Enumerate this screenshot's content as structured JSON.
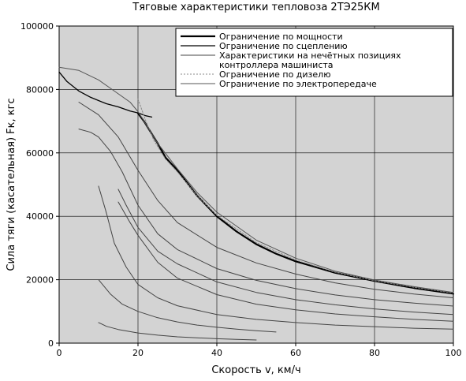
{
  "chart_data": {
    "type": "line",
    "title": "Тяговые характеристики тепловоза 2ТЭ25КМ",
    "xlabel": "Скорость v, км/ч",
    "ylabel": "Сила тяги (касательная) Fк, кгс",
    "xlim": [
      0,
      100
    ],
    "ylim": [
      0,
      100000
    ],
    "xticks": [
      0,
      20,
      40,
      60,
      80,
      100
    ],
    "yticks": [
      0,
      20000,
      40000,
      60000,
      80000,
      100000
    ],
    "grid": true,
    "background": "#d3d3d3",
    "legend_position": "top-right",
    "legend": [
      {
        "label": "Ограничение по мощности",
        "color": "#000000",
        "width": 2.2,
        "dash": ""
      },
      {
        "label": "Ограничение по сцеплению",
        "color": "#000000",
        "width": 1.3,
        "dash": ""
      },
      {
        "label": "Характеристики на нечётных позициях\nконтроллера машиниста",
        "color": "#444444",
        "width": 1,
        "dash": ""
      },
      {
        "label": "Ограничение по дизелю",
        "color": "#888888",
        "width": 1,
        "dash": "2,2"
      },
      {
        "label": "Ограничение по электропередаче",
        "color": "#555555",
        "width": 1,
        "dash": ""
      }
    ],
    "series": [
      {
        "role": "power",
        "color": "#000000",
        "width": 2.2,
        "dash": "",
        "x": [
          20,
          21.5,
          23,
          25,
          27,
          30,
          35,
          40,
          45,
          50,
          55,
          60,
          70,
          80,
          90,
          100
        ],
        "y": [
          72500,
          70000,
          67000,
          63000,
          58500,
          54500,
          46500,
          40000,
          35200,
          31200,
          28200,
          25800,
          22200,
          19600,
          17400,
          15600
        ]
      },
      {
        "role": "adhesion",
        "color": "#000000",
        "width": 1.3,
        "dash": "",
        "x": [
          0,
          2,
          5,
          8,
          10,
          12,
          15,
          18,
          20,
          22,
          23.5
        ],
        "y": [
          85500,
          82500,
          79500,
          77500,
          76500,
          75500,
          74500,
          73200,
          72600,
          71700,
          71300
        ]
      },
      {
        "role": "diesel",
        "color": "#888888",
        "width": 1,
        "dash": "2,2",
        "x": [
          20,
          22,
          24,
          27,
          30,
          35,
          40,
          50,
          60,
          70,
          80,
          90,
          100
        ],
        "y": [
          77000,
          70000,
          64000,
          58000,
          54000,
          46500,
          40300,
          31700,
          26200,
          22400,
          19700,
          17600,
          15800
        ]
      },
      {
        "role": "transmission",
        "color": "#555555",
        "width": 1,
        "dash": "",
        "x": [
          0,
          5,
          10,
          14,
          18,
          20,
          22,
          25,
          30,
          35,
          40,
          50,
          60,
          70,
          80,
          90,
          100
        ],
        "y": [
          87000,
          86000,
          83000,
          79500,
          76000,
          73000,
          69000,
          63000,
          55000,
          47500,
          41300,
          32500,
          26800,
          22700,
          19900,
          17800,
          16000
        ]
      },
      {
        "role": "position",
        "color": "#444444",
        "width": 1,
        "dash": "",
        "x": [
          5,
          10,
          15,
          20,
          25,
          30,
          40,
          50,
          60,
          70,
          80,
          90,
          100
        ],
        "y": [
          76000,
          72000,
          65000,
          54500,
          45000,
          38000,
          30200,
          25300,
          21800,
          19000,
          17000,
          15500,
          14300
        ]
      },
      {
        "role": "position",
        "color": "#444444",
        "width": 1,
        "dash": "",
        "x": [
          5,
          8,
          10,
          13,
          16,
          20,
          25,
          30,
          40,
          50,
          60,
          70,
          80,
          90,
          100
        ],
        "y": [
          67500,
          66500,
          65000,
          60500,
          54000,
          43500,
          34500,
          29500,
          23500,
          19800,
          17200,
          15200,
          13700,
          12600,
          11700
        ]
      },
      {
        "role": "position",
        "color": "#444444",
        "width": 1,
        "dash": "",
        "x": [
          15,
          17,
          20,
          25,
          30,
          40,
          50,
          60,
          70,
          80,
          90,
          100
        ],
        "y": [
          48500,
          43500,
          36500,
          29000,
          25000,
          19300,
          16000,
          13700,
          12100,
          10800,
          9800,
          9000
        ]
      },
      {
        "role": "position",
        "color": "#444444",
        "width": 1,
        "dash": "",
        "x": [
          15,
          18,
          20,
          25,
          30,
          40,
          50,
          60,
          70,
          80,
          90,
          100
        ],
        "y": [
          44500,
          38000,
          34000,
          25500,
          20500,
          15300,
          12300,
          10500,
          9200,
          8300,
          7500,
          6900
        ]
      },
      {
        "role": "position",
        "color": "#444444",
        "width": 1,
        "dash": "",
        "x": [
          10,
          12,
          14,
          17,
          20,
          25,
          30,
          40,
          50,
          60,
          70,
          80,
          90,
          100
        ],
        "y": [
          49500,
          41000,
          31500,
          24000,
          18500,
          14300,
          11800,
          9000,
          7500,
          6500,
          5700,
          5200,
          4700,
          4400
        ]
      },
      {
        "role": "position",
        "color": "#444444",
        "width": 1,
        "dash": "",
        "x": [
          10,
          13,
          16,
          20,
          25,
          30,
          35,
          40,
          45,
          50,
          55
        ],
        "y": [
          20000,
          15500,
          12300,
          10000,
          8000,
          6700,
          5700,
          5000,
          4400,
          3900,
          3500
        ]
      },
      {
        "role": "position",
        "color": "#444444",
        "width": 1,
        "dash": "",
        "x": [
          10,
          12,
          15,
          20,
          25,
          30,
          35,
          40,
          45,
          50
        ],
        "y": [
          6500,
          5300,
          4300,
          3200,
          2500,
          2000,
          1700,
          1400,
          1200,
          1000
        ]
      }
    ]
  }
}
